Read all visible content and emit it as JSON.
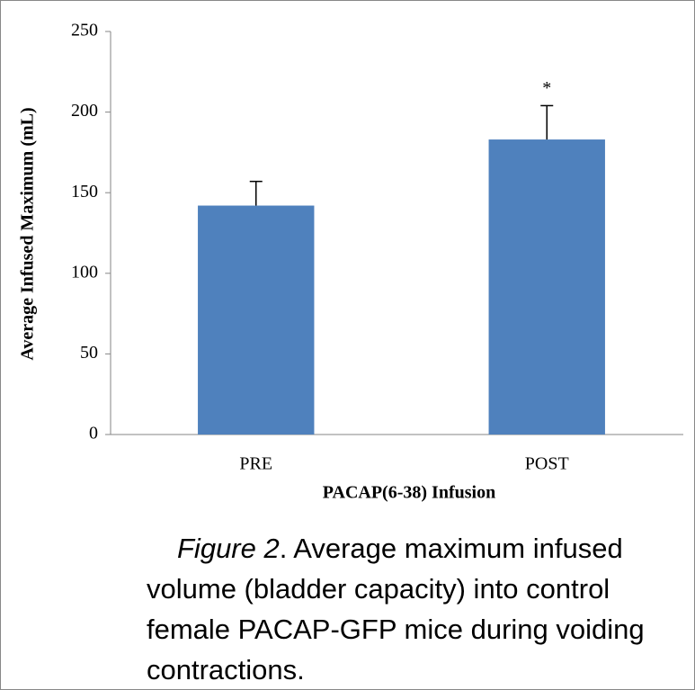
{
  "chart_data": {
    "type": "bar",
    "y_label": "Average Infused Maximum (mL)",
    "x_label": "PACAP(6-38) Infusion",
    "categories": [
      "PRE",
      "POST"
    ],
    "values": [
      142,
      183
    ],
    "error": [
      15,
      21
    ],
    "color": "#4f81bd",
    "ylim": [
      0,
      250
    ],
    "yticks": [
      0,
      50,
      100,
      150,
      200,
      250
    ],
    "grid": false,
    "annotations": [
      {
        "text": "*",
        "category": 1
      }
    ]
  },
  "caption": {
    "label": "Figure 2",
    "lines": [
      ". Average maximum infused",
      "volume (bladder capacity) into control",
      "female PACAP-GFP mice during voiding",
      "contractions."
    ]
  }
}
